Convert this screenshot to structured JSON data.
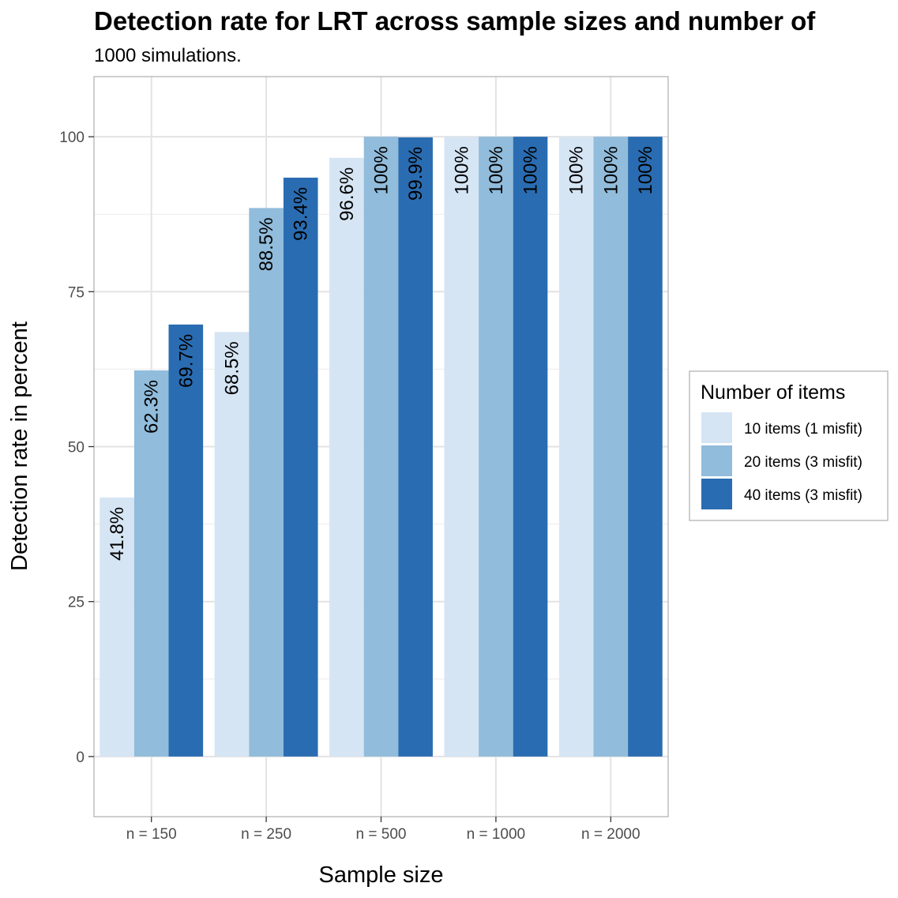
{
  "chart_data": {
    "type": "bar",
    "title": "Detection rate for LRT across sample sizes and number of",
    "subtitle": "1000 simulations.",
    "xlabel": "Sample size",
    "ylabel": "Detection rate in percent",
    "categories": [
      "n = 150",
      "n = 250",
      "n = 500",
      "n = 1000",
      "n = 2000"
    ],
    "series": [
      {
        "name": "10 items (1 misfit)",
        "color": "#d6e5f4",
        "values": [
          41.8,
          68.5,
          96.6,
          100,
          100
        ],
        "labels": [
          "41.8%",
          "68.5%",
          "96.6%",
          "100%",
          "100%"
        ]
      },
      {
        "name": "20 items (3 misfit)",
        "color": "#91bcdb",
        "values": [
          62.3,
          88.5,
          100,
          100,
          100
        ],
        "labels": [
          "62.3%",
          "88.5%",
          "100%",
          "100%",
          "100%"
        ]
      },
      {
        "name": "40 items (3 misfit)",
        "color": "#2a6cb1",
        "values": [
          69.7,
          93.4,
          99.9,
          100,
          100
        ],
        "labels": [
          "69.7%",
          "93.4%",
          "99.9%",
          "100%",
          "100%"
        ]
      }
    ],
    "ylim": [
      -9.7,
      109.7
    ],
    "yticks": [
      0,
      25,
      50,
      75,
      100
    ],
    "grid": true,
    "legend": {
      "title": "Number of items",
      "placement": "right"
    }
  }
}
